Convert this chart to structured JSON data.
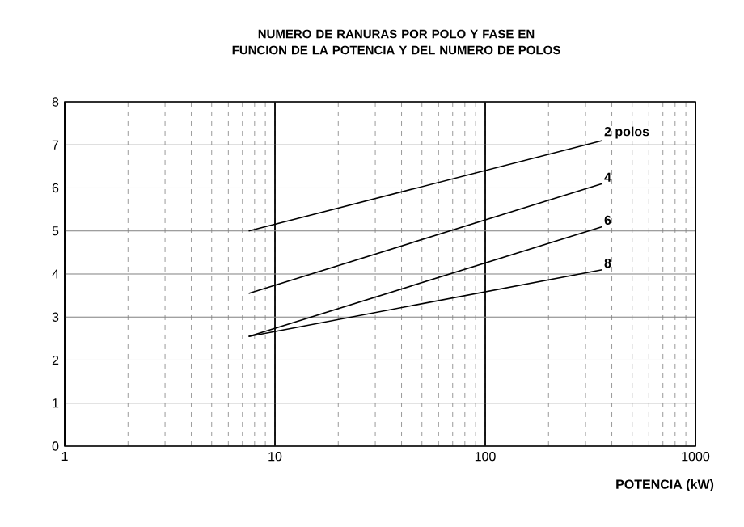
{
  "chart_data": {
    "type": "line",
    "title": "NUMERO DE RANURAS POR POLO Y FASE EN FUNCION DE LA POTENCIA Y DEL NUMERO DE POLOS",
    "xlabel": "POTENCIA (kW)",
    "log": "x",
    "grid": true,
    "xlim": [
      1,
      1000
    ],
    "xticks": [
      1,
      10,
      100,
      1000
    ],
    "ylim": [
      0,
      8
    ],
    "yticks": [
      0,
      1,
      2,
      3,
      4,
      5,
      6,
      7,
      8
    ],
    "x": [
      7.5,
      360
    ],
    "series": [
      {
        "name": "2 polos",
        "color": "#000000",
        "values": [
          5.0,
          7.1
        ]
      },
      {
        "name": "4",
        "color": "#000000",
        "values": [
          3.55,
          6.1
        ]
      },
      {
        "name": "6",
        "color": "#000000",
        "values": [
          2.55,
          5.1
        ]
      },
      {
        "name": "8",
        "color": "#000000",
        "values": [
          2.55,
          4.1
        ]
      }
    ]
  }
}
